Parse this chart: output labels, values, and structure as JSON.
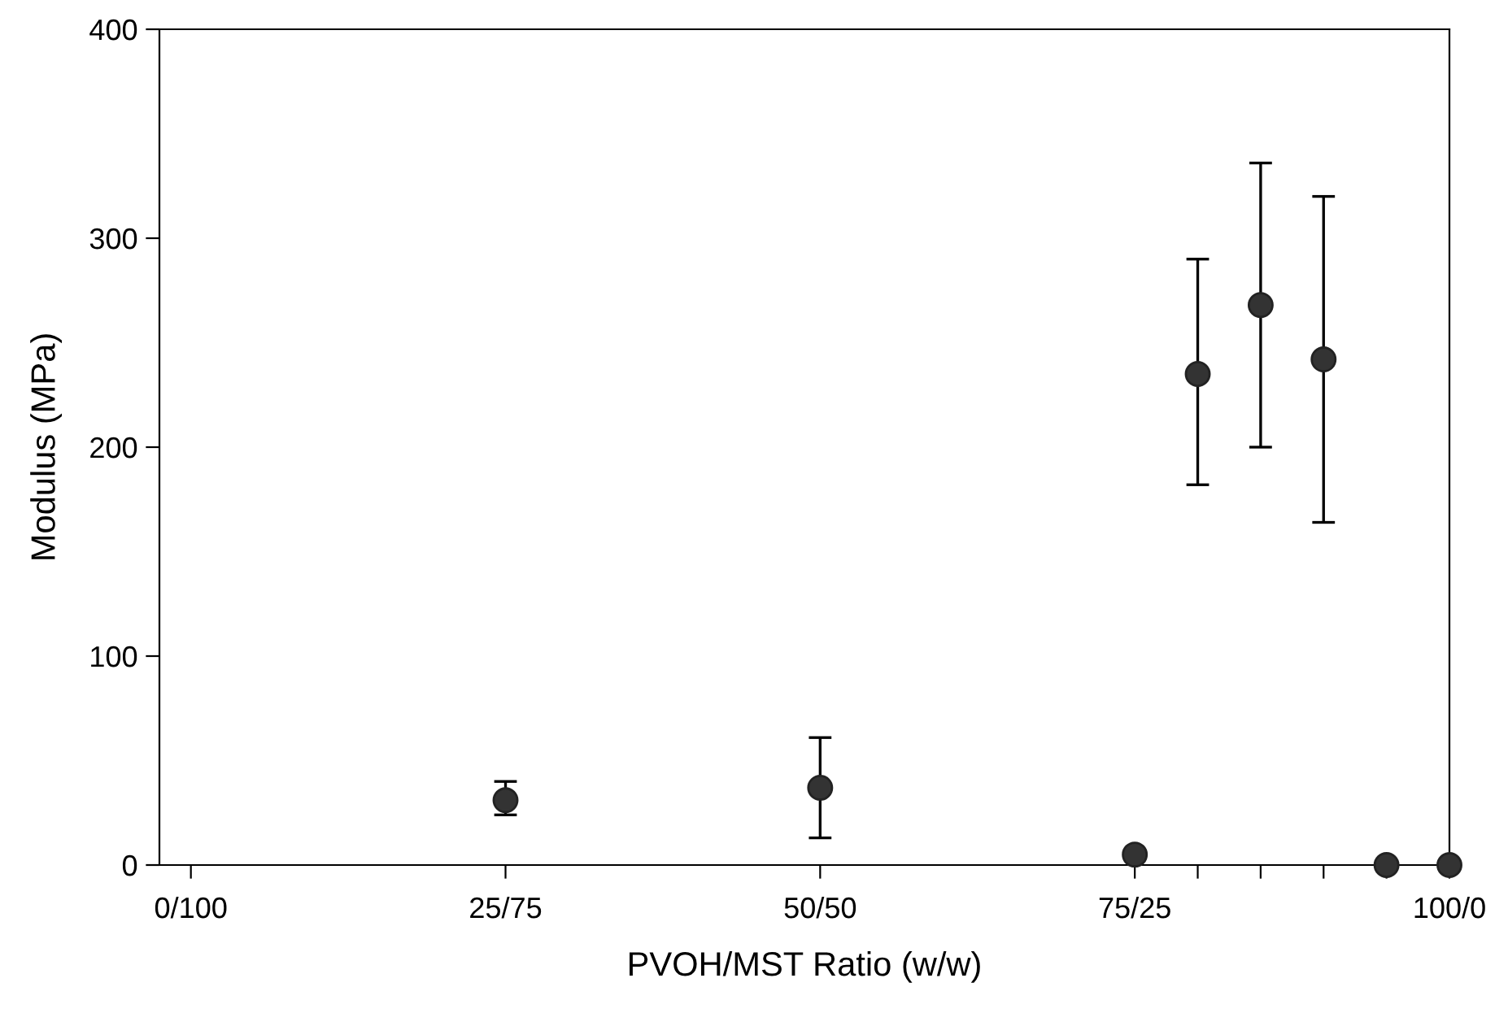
{
  "chart_data": {
    "type": "scatter",
    "xlabel": "PVOH/MST Ratio (w/w)",
    "ylabel": "Modulus (MPa)",
    "categories": [
      "0/100",
      null,
      null,
      null,
      null,
      "25/75",
      null,
      null,
      null,
      null,
      "50/50",
      null,
      null,
      null,
      null,
      "75/25",
      null,
      null,
      null,
      null,
      "100/0"
    ],
    "values": [
      null,
      null,
      null,
      null,
      null,
      31,
      null,
      null,
      null,
      null,
      37,
      null,
      null,
      null,
      null,
      5,
      235,
      268,
      242,
      0,
      0
    ],
    "errors": [
      null,
      null,
      null,
      null,
      null,
      [
        24,
        40
      ],
      null,
      null,
      null,
      null,
      [
        13,
        61
      ],
      null,
      null,
      null,
      null,
      null,
      [
        182,
        290
      ],
      [
        200,
        336
      ],
      [
        164,
        320
      ],
      null,
      null
    ],
    "color": "#333333",
    "marker": "circle",
    "ylim": [
      0,
      400
    ],
    "yticks": [
      0,
      100,
      200,
      300,
      400
    ],
    "grid": false,
    "legend": false
  }
}
